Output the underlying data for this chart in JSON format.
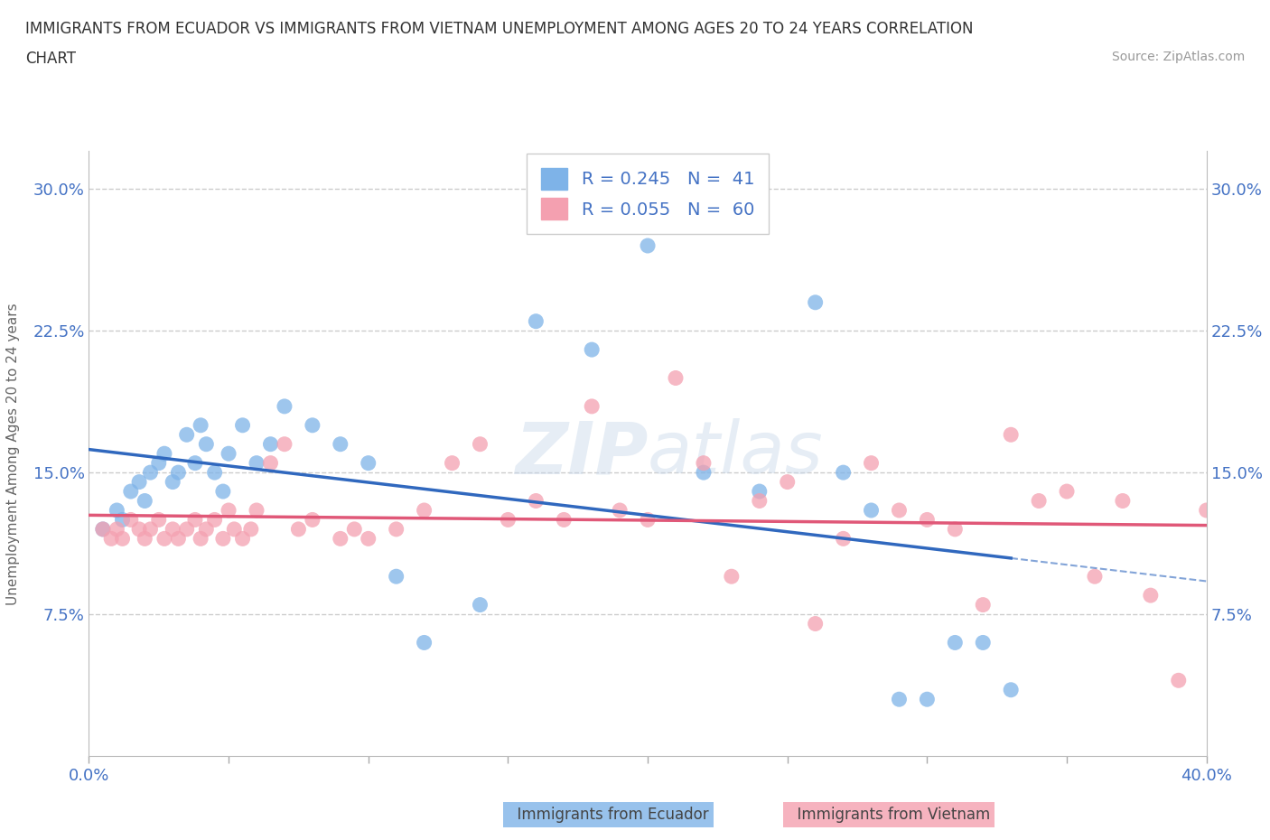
{
  "title_line1": "IMMIGRANTS FROM ECUADOR VS IMMIGRANTS FROM VIETNAM UNEMPLOYMENT AMONG AGES 20 TO 24 YEARS CORRELATION",
  "title_line2": "CHART",
  "source": "Source: ZipAtlas.com",
  "ylabel": "Unemployment Among Ages 20 to 24 years",
  "xlim": [
    0.0,
    0.4
  ],
  "ylim": [
    0.0,
    0.32
  ],
  "xticks": [
    0.0,
    0.05,
    0.1,
    0.15,
    0.2,
    0.25,
    0.3,
    0.35,
    0.4
  ],
  "yticks": [
    0.0,
    0.075,
    0.15,
    0.225,
    0.3
  ],
  "ecuador_color": "#7eb3e8",
  "vietnam_color": "#f4a0b0",
  "ecuador_line_color": "#3068be",
  "vietnam_line_color": "#e05878",
  "ecuador_R": 0.245,
  "ecuador_N": 41,
  "vietnam_R": 0.055,
  "vietnam_N": 60,
  "watermark": "ZIPatlas",
  "ecuador_x": [
    0.005,
    0.01,
    0.012,
    0.015,
    0.018,
    0.02,
    0.022,
    0.025,
    0.027,
    0.03,
    0.032,
    0.035,
    0.038,
    0.04,
    0.042,
    0.045,
    0.048,
    0.05,
    0.055,
    0.06,
    0.065,
    0.07,
    0.08,
    0.09,
    0.1,
    0.11,
    0.12,
    0.14,
    0.16,
    0.18,
    0.2,
    0.22,
    0.24,
    0.26,
    0.27,
    0.28,
    0.29,
    0.3,
    0.31,
    0.32,
    0.33
  ],
  "ecuador_y": [
    0.12,
    0.13,
    0.125,
    0.14,
    0.145,
    0.135,
    0.15,
    0.155,
    0.16,
    0.145,
    0.15,
    0.17,
    0.155,
    0.175,
    0.165,
    0.15,
    0.14,
    0.16,
    0.175,
    0.155,
    0.165,
    0.185,
    0.175,
    0.165,
    0.155,
    0.095,
    0.06,
    0.08,
    0.23,
    0.215,
    0.27,
    0.15,
    0.14,
    0.24,
    0.15,
    0.13,
    0.03,
    0.03,
    0.06,
    0.06,
    0.035
  ],
  "vietnam_x": [
    0.005,
    0.008,
    0.01,
    0.012,
    0.015,
    0.018,
    0.02,
    0.022,
    0.025,
    0.027,
    0.03,
    0.032,
    0.035,
    0.038,
    0.04,
    0.042,
    0.045,
    0.048,
    0.05,
    0.052,
    0.055,
    0.058,
    0.06,
    0.065,
    0.07,
    0.075,
    0.08,
    0.09,
    0.095,
    0.1,
    0.11,
    0.12,
    0.13,
    0.14,
    0.15,
    0.16,
    0.17,
    0.18,
    0.19,
    0.2,
    0.21,
    0.22,
    0.23,
    0.24,
    0.25,
    0.26,
    0.27,
    0.28,
    0.29,
    0.3,
    0.31,
    0.32,
    0.33,
    0.34,
    0.35,
    0.36,
    0.37,
    0.38,
    0.39,
    0.4
  ],
  "vietnam_y": [
    0.12,
    0.115,
    0.12,
    0.115,
    0.125,
    0.12,
    0.115,
    0.12,
    0.125,
    0.115,
    0.12,
    0.115,
    0.12,
    0.125,
    0.115,
    0.12,
    0.125,
    0.115,
    0.13,
    0.12,
    0.115,
    0.12,
    0.13,
    0.155,
    0.165,
    0.12,
    0.125,
    0.115,
    0.12,
    0.115,
    0.12,
    0.13,
    0.155,
    0.165,
    0.125,
    0.135,
    0.125,
    0.185,
    0.13,
    0.125,
    0.2,
    0.155,
    0.095,
    0.135,
    0.145,
    0.07,
    0.115,
    0.155,
    0.13,
    0.125,
    0.12,
    0.08,
    0.17,
    0.135,
    0.14,
    0.095,
    0.135,
    0.085,
    0.04,
    0.13
  ]
}
